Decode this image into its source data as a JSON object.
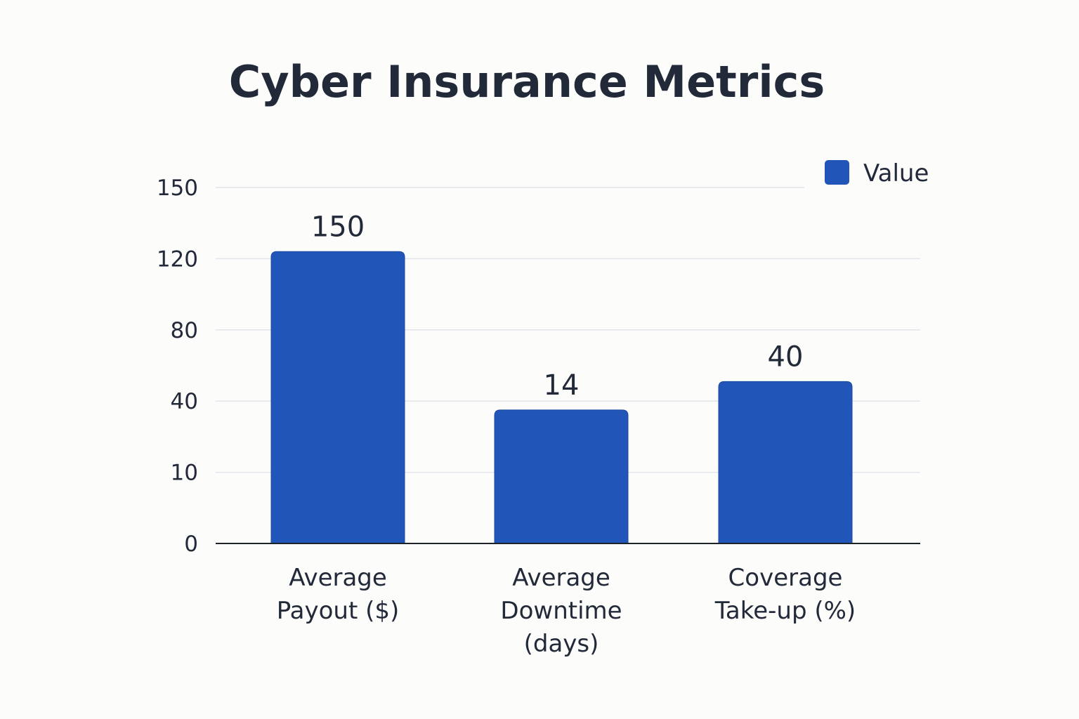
{
  "chart_data": {
    "type": "bar",
    "title": "Cyber Insurance Metrics",
    "xlabel": "",
    "ylabel": "",
    "categories": [
      [
        "Average",
        "Payout ($)"
      ],
      [
        "Average",
        "Downtime",
        "(days)"
      ],
      [
        "Coverage",
        "Take-up (%)"
      ]
    ],
    "series": [
      {
        "name": "Value",
        "values": [
          150,
          14,
          40
        ],
        "color": "#2156b8"
      }
    ],
    "value_labels": [
      "150",
      "14",
      "40"
    ],
    "y_ticks": [
      "0",
      "10",
      "40",
      "80",
      "120",
      "150"
    ],
    "bar_fill_fractions": [
      0.82,
      0.375,
      0.455
    ],
    "legend_position": "top-right",
    "grid": true
  }
}
